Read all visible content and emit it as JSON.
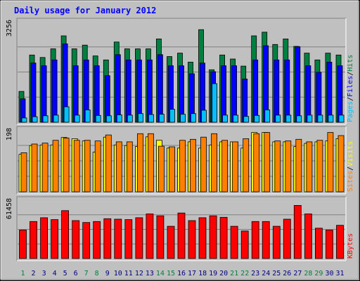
{
  "chart_data": {
    "type": "bar",
    "title": "Daily usage for January 2012",
    "categories": [
      "1",
      "2",
      "3",
      "4",
      "5",
      "6",
      "7",
      "8",
      "9",
      "10",
      "11",
      "12",
      "13",
      "14",
      "15",
      "16",
      "17",
      "18",
      "19",
      "20",
      "21",
      "22",
      "23",
      "24",
      "25",
      "26",
      "27",
      "28",
      "29",
      "30",
      "31"
    ],
    "weekend_days": [
      "1",
      "7",
      "8",
      "14",
      "15",
      "21",
      "22",
      "28",
      "29"
    ],
    "panels": [
      {
        "id": "hits",
        "max_label": "3256",
        "ymax": 3256,
        "legend": [
          "Pages",
          "/",
          "Files",
          "/",
          "Hits"
        ],
        "series": [
          {
            "name": "Hits",
            "color": "#008040",
            "values": [
              1000,
              2180,
              2100,
              2380,
              2800,
              2380,
              2500,
              2150,
              2020,
              2600,
              2380,
              2380,
              2380,
              2700,
              2130,
              2240,
              1950,
              3000,
              1700,
              2180,
              2050,
              1820,
              2800,
              2920,
              2520,
              2700,
              2460,
              2240,
              2020,
              2240,
              2180
            ]
          },
          {
            "name": "Files",
            "color": "#0000ff",
            "values": [
              760,
              1920,
              1830,
              2020,
              2540,
              1830,
              2020,
              1830,
              1510,
              2190,
              2020,
              2020,
              2020,
              2190,
              1830,
              1830,
              1570,
              1920,
              1640,
              1830,
              1830,
              1400,
              2020,
              2480,
              2020,
              2020,
              2450,
              1830,
              1620,
              1950,
              1830
            ]
          },
          {
            "name": "Pages",
            "color": "#00c0ff",
            "values": [
              140,
              180,
              210,
              230,
              500,
              230,
              400,
              220,
              210,
              240,
              230,
              280,
              250,
              260,
              420,
              260,
              280,
              390,
              1250,
              230,
              230,
              190,
              220,
              400,
              230,
              230,
              210,
              230,
              230,
              230,
              230
            ]
          }
        ]
      },
      {
        "id": "visits",
        "max_label": "198",
        "ymax": 198,
        "legend": [
          "Sites",
          "/",
          "Visits"
        ],
        "series": [
          {
            "name": "Visits",
            "color": "#ffff00",
            "values": [
              120,
              148,
              150,
              150,
              174,
              170,
              163,
              127,
              175,
              150,
              148,
              145,
              176,
              165,
              140,
              140,
              160,
              140,
              150,
              160,
              160,
              140,
              190,
              190,
              160,
              160,
              145,
              155,
              160,
              163,
              170
            ]
          },
          {
            "name": "Sites",
            "color": "#ff8000",
            "values": [
              125,
              153,
              156,
              165,
              172,
              165,
              165,
              163,
              182,
              160,
              160,
              186,
              186,
              146,
              144,
              165,
              168,
              175,
              186,
              165,
              160,
              170,
              186,
              190,
              163,
              163,
              168,
              160,
              165,
              190,
              180
            ]
          }
        ]
      },
      {
        "id": "kbytes",
        "max_label": "61458",
        "ymax": 61458,
        "legend": [
          "KBytes"
        ],
        "series": [
          {
            "name": "KBytes",
            "color": "#ff0000",
            "values": [
              30000,
              39000,
              43000,
              41000,
              50500,
              40000,
              38000,
              39000,
              42000,
              41500,
              41000,
              43000,
              47000,
              45000,
              34000,
              48000,
              40000,
              43000,
              45000,
              43500,
              34000,
              29000,
              39000,
              39000,
              34000,
              41500,
              56000,
              47000,
              32000,
              30000,
              35000
            ]
          }
        ]
      }
    ]
  },
  "colors": {
    "background": "#c0c0c0",
    "frame": "#000000",
    "title": "#0000ff",
    "weekday_label": "#000080",
    "weekend_label": "#008040",
    "gridline": "#808080"
  }
}
